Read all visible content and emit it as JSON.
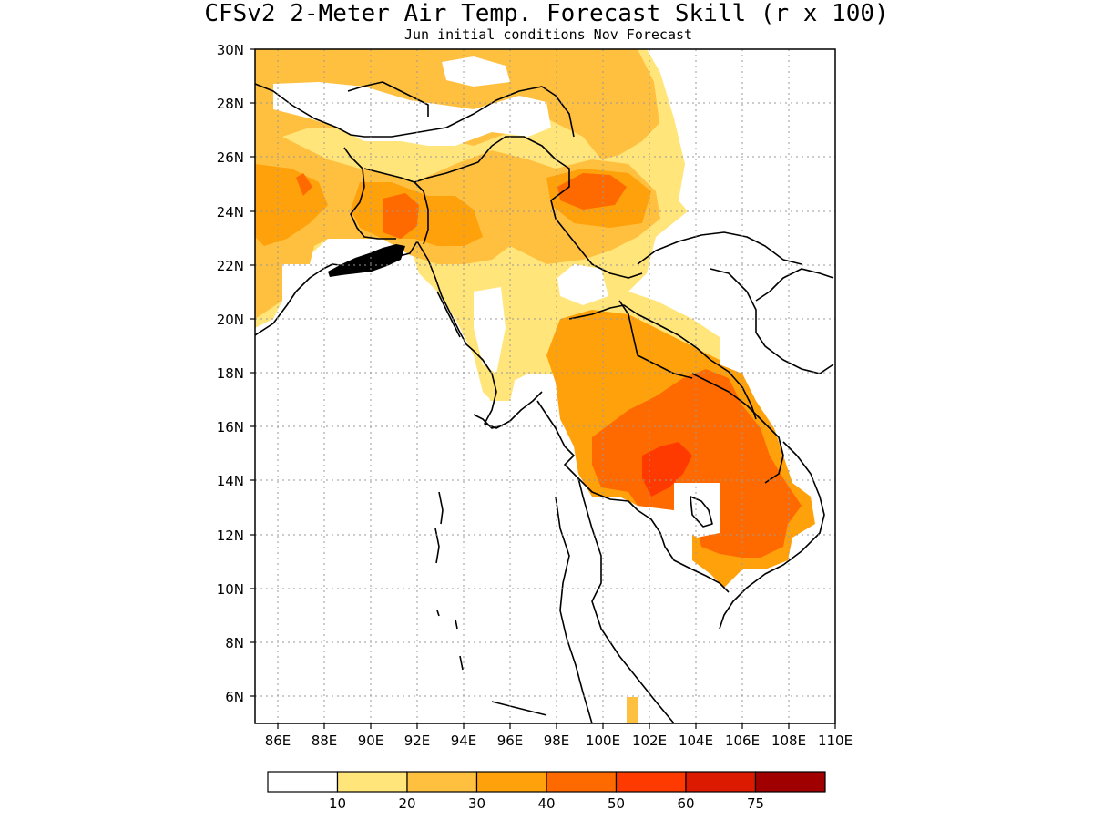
{
  "title": "CFSv2 2-Meter Air Temp. Forecast Skill (r x 100)",
  "subtitle": "Jun initial conditions   Nov Forecast",
  "map": {
    "region": "Mainland Southeast Asia",
    "lon_range": [
      85,
      110
    ],
    "lat_range": [
      5,
      30
    ],
    "x_tick_labels": [
      "86E",
      "88E",
      "90E",
      "92E",
      "94E",
      "96E",
      "98E",
      "100E",
      "102E",
      "104E",
      "106E",
      "108E",
      "110E"
    ],
    "y_tick_labels": [
      "30N",
      "28N",
      "26N",
      "24N",
      "22N",
      "20N",
      "18N",
      "16N",
      "14N",
      "12N",
      "10N",
      "8N",
      "6N"
    ],
    "grid": "dotted"
  },
  "colorbar": {
    "colors": [
      "#ffffff",
      "#ffe57a",
      "#ffc040",
      "#ffa10a",
      "#ff6a00",
      "#ff3a00",
      "#dc1a00",
      "#a00000"
    ],
    "labels": [
      "10",
      "20",
      "30",
      "40",
      "50",
      "60",
      "75"
    ]
  }
}
